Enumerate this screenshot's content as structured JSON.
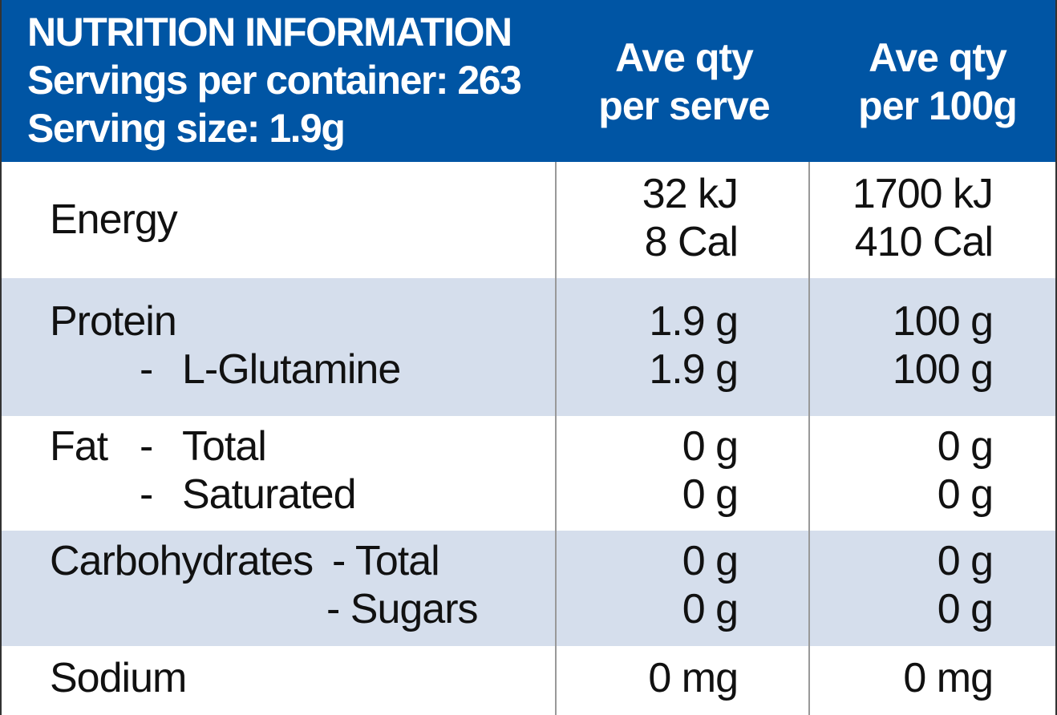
{
  "header": {
    "title": "NUTRITION INFORMATION",
    "servings": "Servings per container: 263",
    "serving_size": "Serving size: 1.9g",
    "col_serve": [
      "Ave qty",
      "per serve"
    ],
    "col_100g": [
      "Ave qty",
      "per 100g"
    ]
  },
  "colors": {
    "header": "#0055A4",
    "band": "#D5DEEC"
  },
  "rows": {
    "energy": {
      "label": "Energy",
      "serve": [
        "32 kJ",
        "8 Cal"
      ],
      "per100": [
        "1700 kJ",
        "410 Cal"
      ]
    },
    "protein": {
      "label": "Protein",
      "sub_dash": "-",
      "sub_label": "L-Glutamine",
      "serve": [
        "1.9 g",
        "1.9 g"
      ],
      "per100": [
        "100 g",
        "100 g"
      ]
    },
    "fat": {
      "label": "Fat",
      "dash": "-",
      "total": "Total",
      "saturated": "Saturated",
      "serve": [
        "0 g",
        "0 g"
      ],
      "per100": [
        "0 g",
        "0 g"
      ]
    },
    "carbs": {
      "label": "Carbohydrates",
      "total": "- Total",
      "sugars": "- Sugars",
      "serve": [
        "0 g",
        "0 g"
      ],
      "per100": [
        "0 g",
        "0 g"
      ]
    },
    "sodium": {
      "label": "Sodium",
      "serve": "0 mg",
      "per100": "0 mg"
    }
  }
}
